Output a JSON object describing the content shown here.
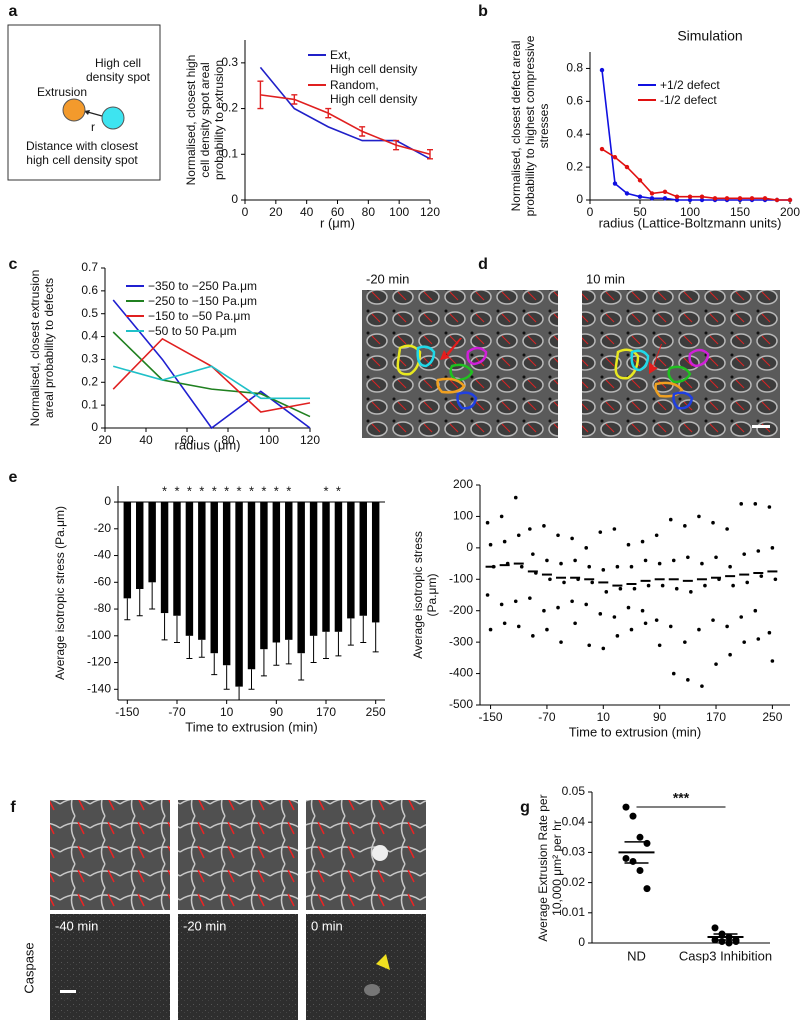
{
  "panel_labels": [
    "a",
    "b",
    "c",
    "d",
    "e",
    "f",
    "g"
  ],
  "diagram_a": {
    "extrusion": "Extrusion",
    "spot": "High cell density spot",
    "edge_label": "r",
    "caption": "Distance with closest high cell density spot"
  },
  "images_d": {
    "labels": [
      "-20 min",
      "10 min"
    ]
  },
  "images_f": {
    "labels": [
      "-40 min",
      "-20 min",
      "0 min"
    ],
    "row_label": "Caspase"
  },
  "chart_data": [
    {
      "type": "line",
      "ylabel": "Normalised, closest high cell density spot areal probability to extrusion",
      "xlabel": "r (μm)",
      "x": [
        10,
        32,
        54,
        76,
        98,
        120
      ],
      "xlim": [
        0,
        120
      ],
      "xticks": [
        0,
        20,
        40,
        60,
        80,
        100,
        120
      ],
      "ylim": [
        0,
        0.35
      ],
      "yticks": [
        0,
        0.1,
        0.2,
        0.3
      ],
      "series": [
        {
          "name": "Ext,\nHigh cell density",
          "color": "#2020c8",
          "values": [
            0.29,
            0.2,
            0.16,
            0.13,
            0.13,
            0.09
          ]
        },
        {
          "name": "Random,\nHigh cell density",
          "color": "#e02020",
          "values": [
            0.23,
            0.22,
            0.19,
            0.15,
            0.12,
            0.1
          ],
          "errors": [
            0.03,
            0.01,
            0.01,
            0.01,
            0.01,
            0.01
          ]
        }
      ]
    },
    {
      "type": "line",
      "title": "Simulation",
      "ylabel": "Normalised, closest defect areal probability to highest compressive stresses",
      "xlabel": "radius (Lattice-Boltzmann units)",
      "x": [
        12,
        25,
        37,
        50,
        62,
        75,
        87,
        100,
        112,
        125,
        137,
        150,
        162,
        175,
        187,
        200
      ],
      "xlim": [
        0,
        200
      ],
      "xticks": [
        0,
        50,
        100,
        150,
        200
      ],
      "ylim": [
        0,
        0.9
      ],
      "yticks": [
        0,
        0.2,
        0.4,
        0.6,
        0.8
      ],
      "markers": true,
      "series": [
        {
          "name": "+1/2 defect",
          "color": "#1010e0",
          "values": [
            0.79,
            0.1,
            0.04,
            0.02,
            0.01,
            0.01,
            0,
            0,
            0,
            0,
            0,
            0,
            0,
            0,
            0,
            0
          ]
        },
        {
          "name": "-1/2 defect",
          "color": "#e01010",
          "values": [
            0.31,
            0.26,
            0.2,
            0.12,
            0.04,
            0.05,
            0.02,
            0.02,
            0.02,
            0.01,
            0.01,
            0.01,
            0.01,
            0.01,
            0,
            0
          ]
        }
      ]
    },
    {
      "type": "line",
      "ylabel": "Normalised, closest extrusion areal probability to defects",
      "xlabel": "radius (μm)",
      "x": [
        24,
        48,
        72,
        96,
        120
      ],
      "xlim": [
        20,
        120
      ],
      "xticks": [
        20,
        40,
        60,
        80,
        100,
        120
      ],
      "ylim": [
        0,
        0.7
      ],
      "yticks": [
        0,
        0.1,
        0.2,
        0.3,
        0.4,
        0.5,
        0.6,
        0.7
      ],
      "series": [
        {
          "name": "−350 to −250 Pa.μm",
          "color": "#2020d0",
          "values": [
            0.56,
            0.3,
            0,
            0.16,
            0
          ]
        },
        {
          "name": "−250 to −150 Pa.μm",
          "color": "#208020",
          "values": [
            0.42,
            0.21,
            0.17,
            0.15,
            0.05
          ]
        },
        {
          "name": "−150 to −50 Pa.μm",
          "color": "#e02020",
          "values": [
            0.17,
            0.39,
            0.27,
            0.07,
            0.11
          ]
        },
        {
          "name": "−50 to 50 Pa.μm",
          "color": "#20c0c8",
          "values": [
            0.27,
            0.21,
            0.27,
            0.13,
            0.13
          ]
        }
      ]
    },
    {
      "type": "bar",
      "ylabel": "Average isotropic stress (Pa.μm)",
      "xlabel": "Time to extrusion (min)",
      "color": "#000000",
      "x": [
        -150,
        -130,
        -110,
        -90,
        -70,
        -50,
        -30,
        -10,
        10,
        30,
        50,
        70,
        90,
        110,
        130,
        150,
        170,
        190,
        210,
        230,
        250
      ],
      "xlim": [
        -165,
        265
      ],
      "xticks": [
        -150,
        -70,
        10,
        90,
        170,
        250
      ],
      "ylim": [
        -148,
        12
      ],
      "yticks": [
        0,
        -20,
        -40,
        -60,
        -80,
        -100,
        -120,
        -140
      ],
      "values": [
        -72,
        -65,
        -60,
        -83,
        -85,
        -100,
        -103,
        -113,
        -122,
        -138,
        -125,
        -110,
        -105,
        -103,
        -113,
        -100,
        -97,
        -97,
        -87,
        -85,
        -90
      ],
      "errors": [
        16,
        20,
        20,
        20,
        20,
        17,
        13,
        16,
        18,
        10,
        15,
        20,
        17,
        18,
        20,
        20,
        20,
        18,
        20,
        20,
        22
      ],
      "significance": [
        null,
        null,
        null,
        "*",
        "*",
        "*",
        "*",
        "*",
        "*",
        "*",
        "*",
        "*",
        "*",
        "*",
        null,
        null,
        "*",
        "*",
        null,
        null,
        null
      ]
    },
    {
      "type": "scatter",
      "ylabel": "Average isotropic stress (Pa.μm)",
      "xlabel": "Time to extrusion (min)",
      "x": [
        -150,
        -130,
        -110,
        -90,
        -70,
        -50,
        -30,
        -10,
        10,
        30,
        50,
        70,
        90,
        110,
        130,
        150,
        170,
        190,
        210,
        230,
        250
      ],
      "xlim": [
        -165,
        275
      ],
      "xticks": [
        -150,
        -70,
        10,
        90,
        170,
        250
      ],
      "ylim": [
        -500,
        200
      ],
      "yticks": [
        200,
        100,
        0,
        -100,
        -200,
        -300,
        -400,
        -500
      ],
      "means": [
        -60,
        -55,
        -50,
        -75,
        -85,
        -95,
        -95,
        -100,
        -110,
        -120,
        -115,
        -105,
        -100,
        -100,
        -105,
        -100,
        -95,
        -90,
        -85,
        -80,
        -75
      ],
      "points": [
        [
          80,
          10,
          -60,
          -150,
          -260
        ],
        [
          100,
          20,
          -50,
          -180,
          -240
        ],
        [
          160,
          40,
          -60,
          -170,
          -250
        ],
        [
          60,
          -20,
          -80,
          -160,
          -280
        ],
        [
          70,
          -40,
          -100,
          -200,
          -260
        ],
        [
          40,
          -50,
          -110,
          -190,
          -300
        ],
        [
          30,
          -40,
          -100,
          -170,
          -240
        ],
        [
          0,
          -60,
          -110,
          -180,
          -310
        ],
        [
          50,
          -70,
          -140,
          -210,
          -320
        ],
        [
          60,
          -60,
          -130,
          -220,
          -280
        ],
        [
          10,
          -60,
          -130,
          -190,
          -260
        ],
        [
          20,
          -40,
          -120,
          -200,
          -240
        ],
        [
          40,
          -50,
          -120,
          -230,
          -310
        ],
        [
          90,
          -40,
          -130,
          -250,
          -400
        ],
        [
          70,
          -30,
          -140,
          -300,
          -420
        ],
        [
          100,
          -50,
          -120,
          -260,
          -440
        ],
        [
          80,
          -30,
          -100,
          -230,
          -370
        ],
        [
          60,
          -60,
          -120,
          -250,
          -340
        ],
        [
          140,
          -20,
          -110,
          -220,
          -300
        ],
        [
          140,
          -10,
          -90,
          -200,
          -290
        ],
        [
          130,
          0,
          -100,
          -270,
          -360
        ]
      ]
    },
    {
      "type": "dotplot",
      "ylabel": "Average Extrusion Rate per 10,000 μm² per hr",
      "categories": [
        "ND",
        "Casp3 Inhibition"
      ],
      "ylim": [
        0,
        0.05
      ],
      "yticks": [
        0,
        0.01,
        0.02,
        0.03,
        0.04,
        0.05
      ],
      "significance": "***",
      "points": [
        [
          0.045,
          0.042,
          0.035,
          0.033,
          0.028,
          0.027,
          0.024,
          0.018
        ],
        [
          0.005,
          0.003,
          0.002,
          0.001,
          0.001,
          0.0005,
          0,
          0.0005
        ]
      ],
      "means": [
        0.03,
        0.002
      ],
      "sems": [
        0.0035,
        0.001
      ]
    }
  ]
}
